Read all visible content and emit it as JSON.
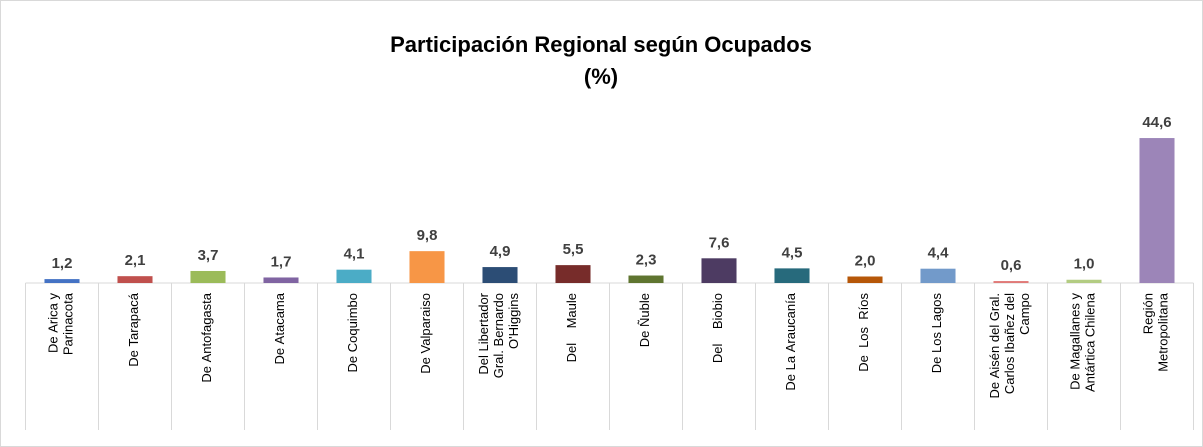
{
  "chart_data": {
    "type": "bar",
    "title": "Participación Regional según Ocupados",
    "subtitle": "(%)",
    "categories": [
      "De Arica y\nParinacota",
      "De Tarapacá",
      "De Antofagasta",
      "De Atacama",
      "De Coquimbo",
      "De Valparaiso",
      "Del Libertador\nGral. Bernardo\nO'Higgins",
      "Del    Maule",
      "De Ñuble",
      "Del    Biobio",
      "De La Araucanía",
      "De  Los  Ríos",
      "De Los Lagos",
      "De Aisén del Gral.\nCarlos Ibañez del\nCampo",
      "De Magallanes y\nAntártica Chilena",
      "Región\nMetropolitana"
    ],
    "values": [
      1.2,
      2.1,
      3.7,
      1.7,
      4.1,
      9.8,
      4.9,
      5.5,
      2.3,
      7.6,
      4.5,
      2.0,
      4.4,
      0.6,
      1.0,
      44.6
    ],
    "value_labels": [
      "1,2",
      "2,1",
      "3,7",
      "1,7",
      "4,1",
      "9,8",
      "4,9",
      "5,5",
      "2,3",
      "7,6",
      "4,5",
      "2,0",
      "4,4",
      "0,6",
      "1,0",
      "44,6"
    ],
    "colors": [
      "#4472c4",
      "#c0504d",
      "#9bbb59",
      "#8064a2",
      "#4bacc6",
      "#f79646",
      "#2c4d75",
      "#772c2a",
      "#5f7530",
      "#4d3b62",
      "#276a7c",
      "#b65708",
      "#729aca",
      "#e07a78",
      "#b3cc82",
      "#9c85b8"
    ],
    "ylim": [
      0,
      50
    ]
  }
}
